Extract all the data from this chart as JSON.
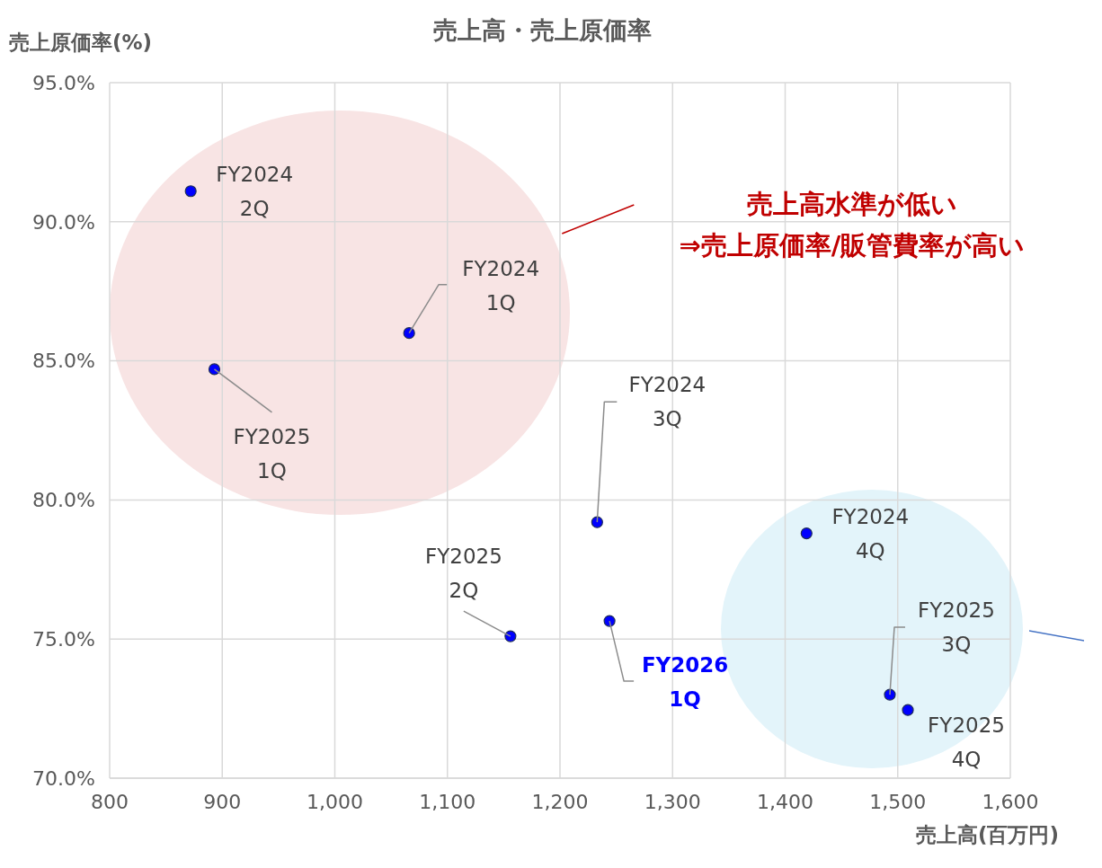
{
  "chart_data": {
    "type": "scatter",
    "title": "売上高・売上原価率",
    "xlabel": "売上高(百万円)",
    "ylabel": "売上原価率(%)",
    "x": [
      872,
      1066,
      893,
      1233,
      1156,
      1244,
      1419,
      1493,
      1509
    ],
    "values": [
      91.1,
      86.0,
      84.7,
      79.2,
      75.1,
      75.65,
      78.8,
      73.0,
      72.45
    ],
    "color": "#0000ff",
    "marker": "circle",
    "grid": true,
    "xlim": [
      800,
      1600
    ],
    "xticks": [
      800,
      900,
      {
        "value": 1000,
        "label": "1,000"
      },
      {
        "value": 1100,
        "label": "1,100"
      },
      {
        "value": 1200,
        "label": "1,200"
      },
      {
        "value": 1300,
        "label": "1,300"
      },
      {
        "value": 1400,
        "label": "1,400"
      },
      {
        "value": 1500,
        "label": "1,500"
      },
      {
        "value": 1600,
        "label": "1,600"
      }
    ],
    "ylim": [
      70,
      95
    ],
    "yticks": [
      {
        "value": 70,
        "label": "70.0%"
      },
      {
        "value": 75,
        "label": "75.0%"
      },
      {
        "value": 80,
        "label": "80.0%"
      },
      {
        "value": 85,
        "label": "85.0%"
      },
      {
        "value": 90,
        "label": "90.0%"
      },
      {
        "value": 95,
        "label": "95.0%"
      }
    ],
    "annotations": [
      {
        "text": "FY2024 2Q",
        "x": 872,
        "y": 91.1
      },
      {
        "text": "FY2024 1Q",
        "x": 1066,
        "y": 86.0
      },
      {
        "text": "FY2025 1Q",
        "x": 893,
        "y": 84.7
      },
      {
        "text": "FY2024 3Q",
        "x": 1233,
        "y": 79.2
      },
      {
        "text": "FY2025 2Q",
        "x": 1156,
        "y": 75.1
      },
      {
        "text": "FY2026 1Q",
        "x": 1244,
        "y": 75.65
      },
      {
        "text": "FY2024 4Q",
        "x": 1419,
        "y": 78.8
      },
      {
        "text": "FY2025 3Q",
        "x": 1493,
        "y": 73.0
      },
      {
        "text": "FY2025 4Q",
        "x": 1509,
        "y": 72.45
      },
      "売上高水準が低い",
      "⇒売上原価率/販管費率が高い"
    ]
  }
}
